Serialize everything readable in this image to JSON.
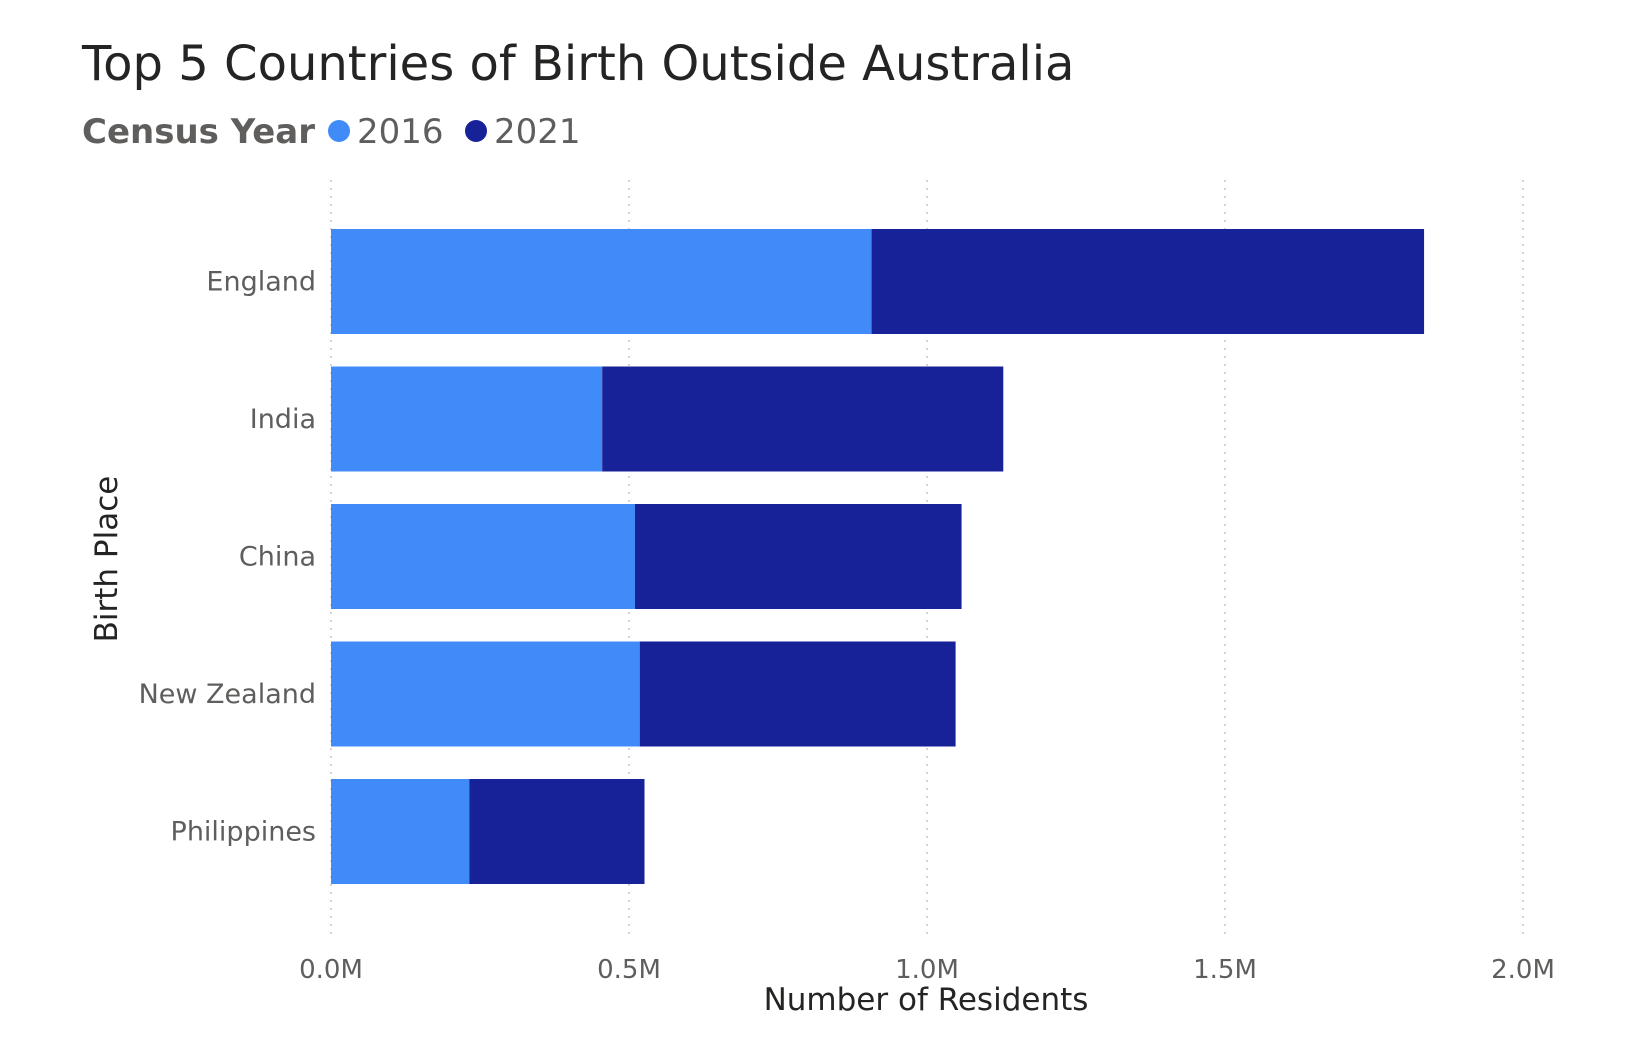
{
  "colors": {
    "series_2016": "#418bf8",
    "series_2021": "#172299"
  },
  "chart_data": {
    "type": "bar",
    "orientation": "horizontal",
    "stacked": true,
    "title": "Top 5 Countries of Birth Outside Australia",
    "legend_title": "Census Year",
    "legend_position": "top-left",
    "xlabel": "Number of Residents",
    "ylabel": "Birth Place",
    "xlim": [
      0,
      2000000
    ],
    "x_ticks": [
      {
        "value": 0,
        "label": "0.0M"
      },
      {
        "value": 500000,
        "label": "0.5M"
      },
      {
        "value": 1000000,
        "label": "1.0M"
      },
      {
        "value": 1500000,
        "label": "1.5M"
      },
      {
        "value": 2000000,
        "label": "2.0M"
      }
    ],
    "grid": "vertical-dotted",
    "categories": [
      "England",
      "India",
      "China",
      "New Zealand",
      "Philippines"
    ],
    "series": [
      {
        "name": "2016",
        "color": "#418bf8",
        "values": [
          907000,
          455000,
          510000,
          518000,
          232000
        ]
      },
      {
        "name": "2021",
        "color": "#172299",
        "values": [
          927000,
          673000,
          548000,
          530000,
          294000
        ]
      }
    ]
  }
}
